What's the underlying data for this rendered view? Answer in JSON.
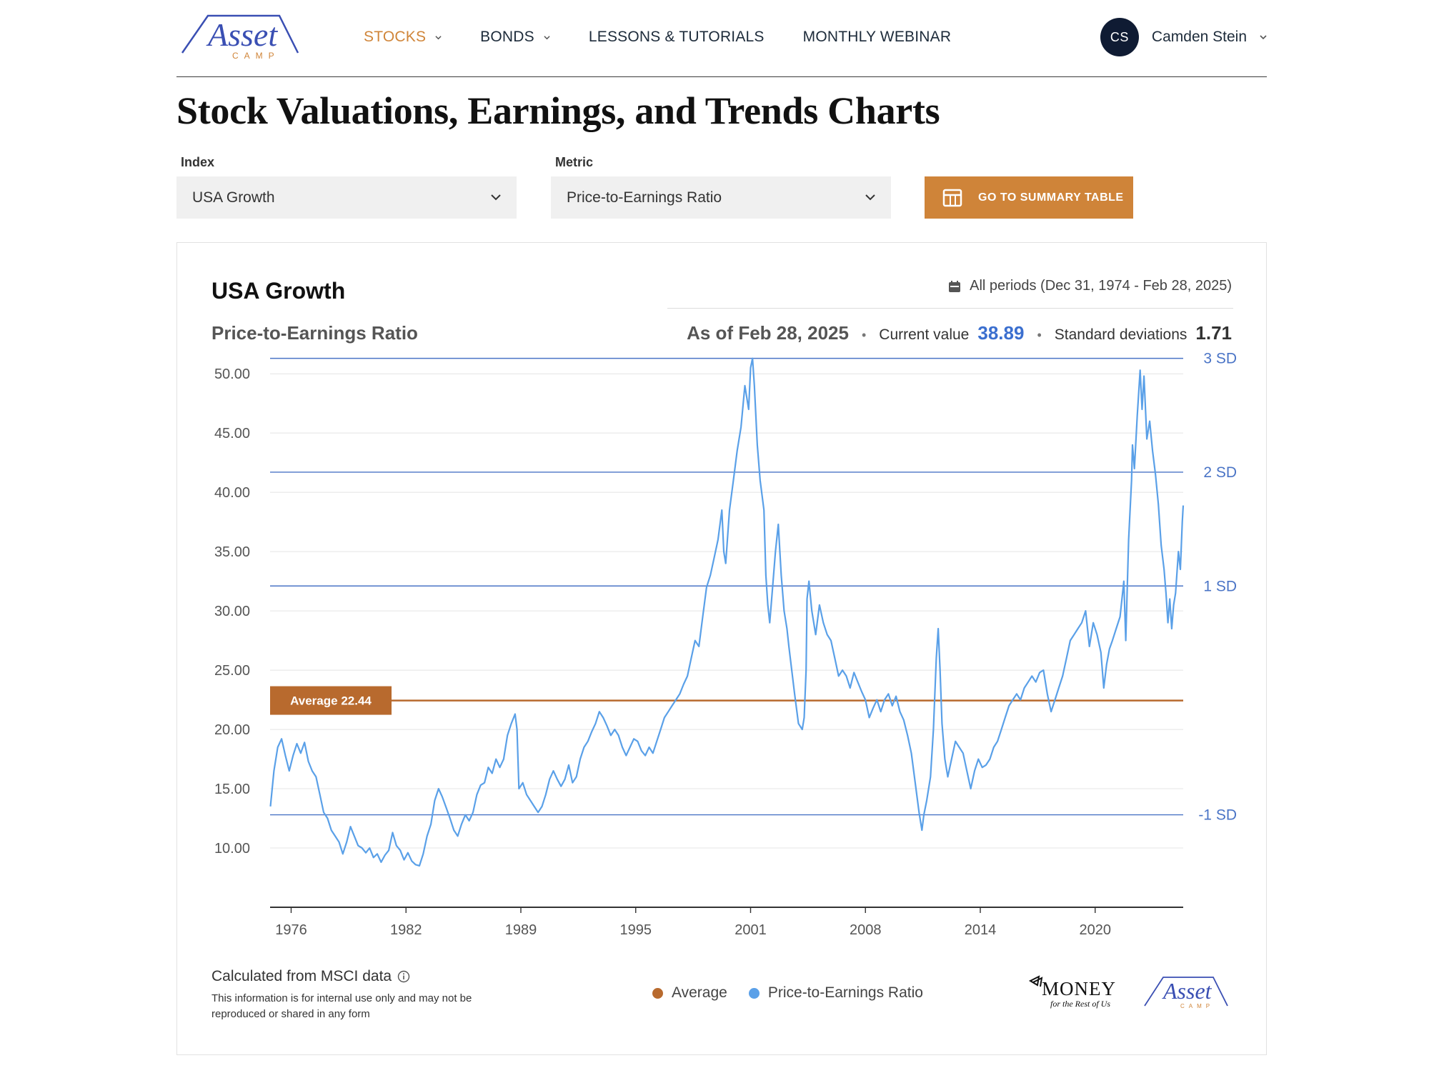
{
  "brand": {
    "logo_word": "Asset",
    "logo_sub": "CAMP"
  },
  "nav": {
    "items": [
      {
        "label": "STOCKS",
        "active": true,
        "dropdown": true
      },
      {
        "label": "BONDS",
        "active": false,
        "dropdown": true
      },
      {
        "label": "LESSONS & TUTORIALS",
        "active": false,
        "dropdown": false
      },
      {
        "label": "MONTHLY WEBINAR",
        "active": false,
        "dropdown": false
      }
    ]
  },
  "user": {
    "initials": "CS",
    "name": "Camden Stein"
  },
  "page": {
    "title": "Stock Valuations, Earnings, and Trends Charts"
  },
  "controls": {
    "index_label": "Index",
    "index_value": "USA Growth",
    "metric_label": "Metric",
    "metric_value": "Price-to-Earnings Ratio",
    "summary_button": "GO TO SUMMARY TABLE"
  },
  "card": {
    "title": "USA Growth",
    "subtitle": "Price-to-Earnings Ratio",
    "periods": "All periods (Dec 31, 1974 - Feb 28, 2025)",
    "as_of": "As of Feb 28, 2025",
    "current_label": "Current value",
    "current_value": "38.89",
    "sd_label": "Standard deviations",
    "sd_value": "1.71",
    "source": "Calculated from MSCI data",
    "note": "This information is for internal use only and may not be reproduced or shared in any form",
    "money_logo": "MONEY",
    "money_tagline": "for the Rest of Us"
  },
  "colors": {
    "accent": "#cf8439",
    "series": "#5aa0e8",
    "sd_line": "#4a74c6",
    "value_blue": "#3b6fcf",
    "average": "#b86a2e"
  },
  "chart_data": {
    "type": "line",
    "title": "USA Growth",
    "subtitle": "Price-to-Earnings Ratio",
    "ylim": [
      5,
      52
    ],
    "yticks": [
      "50.00",
      "45.00",
      "40.00",
      "35.00",
      "30.00",
      "25.00",
      "20.00",
      "15.00",
      "10.00"
    ],
    "ytick_values": [
      50,
      45,
      40,
      35,
      30,
      25,
      20,
      15,
      10
    ],
    "xticks": [
      "1976",
      "1982",
      "1989",
      "1995",
      "2001",
      "2008",
      "2014",
      "2020"
    ],
    "xtick_values": [
      1976,
      1982,
      1988,
      1994,
      2000,
      2006,
      2012,
      2018
    ],
    "xlim": [
      1974.9,
      2022.6
    ],
    "average": {
      "label": "Average 22.44",
      "value": 22.44
    },
    "sd_lines": [
      {
        "label": "3 SD",
        "value": 51.3
      },
      {
        "label": "2 SD",
        "value": 41.7
      },
      {
        "label": "1 SD",
        "value": 32.1
      },
      {
        "label": "-1 SD",
        "value": 12.8
      }
    ],
    "legend": [
      "Average",
      "Price-to-Earnings Ratio"
    ],
    "grid": true,
    "series": [
      {
        "name": "Price-to-Earnings Ratio",
        "points": [
          [
            1974.92,
            13.5
          ],
          [
            1975.1,
            16.5
          ],
          [
            1975.3,
            18.5
          ],
          [
            1975.5,
            19.2
          ],
          [
            1975.7,
            17.8
          ],
          [
            1975.9,
            16.5
          ],
          [
            1976.1,
            17.8
          ],
          [
            1976.3,
            18.8
          ],
          [
            1976.5,
            18.0
          ],
          [
            1976.7,
            18.9
          ],
          [
            1976.9,
            17.3
          ],
          [
            1977.1,
            16.5
          ],
          [
            1977.3,
            16.0
          ],
          [
            1977.5,
            14.5
          ],
          [
            1977.7,
            13.0
          ],
          [
            1977.9,
            12.5
          ],
          [
            1978.1,
            11.5
          ],
          [
            1978.3,
            11.0
          ],
          [
            1978.5,
            10.5
          ],
          [
            1978.7,
            9.5
          ],
          [
            1978.9,
            10.5
          ],
          [
            1979.1,
            11.8
          ],
          [
            1979.3,
            11.0
          ],
          [
            1979.5,
            10.2
          ],
          [
            1979.7,
            10.0
          ],
          [
            1979.9,
            9.6
          ],
          [
            1980.1,
            10.0
          ],
          [
            1980.3,
            9.2
          ],
          [
            1980.5,
            9.5
          ],
          [
            1980.7,
            8.8
          ],
          [
            1980.9,
            9.4
          ],
          [
            1981.1,
            9.8
          ],
          [
            1981.3,
            11.3
          ],
          [
            1981.5,
            10.2
          ],
          [
            1981.7,
            9.8
          ],
          [
            1981.9,
            9.0
          ],
          [
            1982.1,
            9.6
          ],
          [
            1982.3,
            8.9
          ],
          [
            1982.5,
            8.6
          ],
          [
            1982.7,
            8.5
          ],
          [
            1982.9,
            9.5
          ],
          [
            1983.1,
            11.0
          ],
          [
            1983.3,
            12.0
          ],
          [
            1983.5,
            14.0
          ],
          [
            1983.7,
            15.0
          ],
          [
            1983.9,
            14.3
          ],
          [
            1984.1,
            13.4
          ],
          [
            1984.3,
            12.5
          ],
          [
            1984.5,
            11.5
          ],
          [
            1984.7,
            11.0
          ],
          [
            1984.9,
            12.0
          ],
          [
            1985.1,
            12.8
          ],
          [
            1985.3,
            12.3
          ],
          [
            1985.5,
            13.0
          ],
          [
            1985.7,
            14.5
          ],
          [
            1985.9,
            15.3
          ],
          [
            1986.1,
            15.5
          ],
          [
            1986.3,
            16.8
          ],
          [
            1986.5,
            16.3
          ],
          [
            1986.7,
            17.5
          ],
          [
            1986.9,
            16.8
          ],
          [
            1987.1,
            17.5
          ],
          [
            1987.3,
            19.5
          ],
          [
            1987.5,
            20.5
          ],
          [
            1987.7,
            21.3
          ],
          [
            1987.8,
            20.0
          ],
          [
            1987.9,
            15.0
          ],
          [
            1988.1,
            15.5
          ],
          [
            1988.3,
            14.5
          ],
          [
            1988.5,
            14.0
          ],
          [
            1988.7,
            13.5
          ],
          [
            1988.9,
            13.0
          ],
          [
            1989.1,
            13.5
          ],
          [
            1989.3,
            14.5
          ],
          [
            1989.5,
            15.8
          ],
          [
            1989.7,
            16.5
          ],
          [
            1989.9,
            15.8
          ],
          [
            1990.1,
            15.2
          ],
          [
            1990.3,
            15.8
          ],
          [
            1990.5,
            17.0
          ],
          [
            1990.7,
            15.5
          ],
          [
            1990.9,
            16.0
          ],
          [
            1991.1,
            17.5
          ],
          [
            1991.3,
            18.5
          ],
          [
            1991.5,
            19.0
          ],
          [
            1991.7,
            19.8
          ],
          [
            1991.9,
            20.5
          ],
          [
            1992.1,
            21.5
          ],
          [
            1992.3,
            21.0
          ],
          [
            1992.5,
            20.3
          ],
          [
            1992.7,
            19.5
          ],
          [
            1992.9,
            20.0
          ],
          [
            1993.1,
            19.5
          ],
          [
            1993.3,
            18.5
          ],
          [
            1993.5,
            17.8
          ],
          [
            1993.7,
            18.5
          ],
          [
            1993.9,
            19.2
          ],
          [
            1994.1,
            19.0
          ],
          [
            1994.3,
            18.2
          ],
          [
            1994.5,
            17.8
          ],
          [
            1994.7,
            18.5
          ],
          [
            1994.9,
            18.0
          ],
          [
            1995.1,
            19.0
          ],
          [
            1995.3,
            20.0
          ],
          [
            1995.5,
            21.0
          ],
          [
            1995.7,
            21.5
          ],
          [
            1995.9,
            22.0
          ],
          [
            1996.1,
            22.5
          ],
          [
            1996.3,
            23.0
          ],
          [
            1996.5,
            23.8
          ],
          [
            1996.7,
            24.5
          ],
          [
            1996.9,
            26.0
          ],
          [
            1997.1,
            27.5
          ],
          [
            1997.3,
            27.0
          ],
          [
            1997.5,
            29.5
          ],
          [
            1997.7,
            32.0
          ],
          [
            1997.9,
            33.0
          ],
          [
            1998.1,
            34.5
          ],
          [
            1998.3,
            36.0
          ],
          [
            1998.5,
            38.5
          ],
          [
            1998.6,
            35.0
          ],
          [
            1998.7,
            34.0
          ],
          [
            1998.9,
            38.5
          ],
          [
            1999.1,
            41.0
          ],
          [
            1999.3,
            43.5
          ],
          [
            1999.5,
            45.5
          ],
          [
            1999.7,
            49.0
          ],
          [
            1999.9,
            47.0
          ],
          [
            2000.0,
            50.5
          ],
          [
            2000.1,
            51.3
          ],
          [
            2000.2,
            49.0
          ],
          [
            2000.35,
            44.0
          ],
          [
            2000.5,
            41.0
          ],
          [
            2000.7,
            38.5
          ],
          [
            2000.8,
            33.0
          ],
          [
            2000.9,
            30.5
          ],
          [
            2001.0,
            29.0
          ],
          [
            2001.1,
            31.0
          ],
          [
            2001.3,
            35.0
          ],
          [
            2001.45,
            37.3
          ],
          [
            2001.6,
            33.0
          ],
          [
            2001.75,
            30.0
          ],
          [
            2001.9,
            28.5
          ],
          [
            2002.0,
            27.0
          ],
          [
            2002.15,
            25.0
          ],
          [
            2002.3,
            23.0
          ],
          [
            2002.5,
            20.5
          ],
          [
            2002.7,
            20.0
          ],
          [
            2002.8,
            21.0
          ],
          [
            2002.9,
            25.0
          ],
          [
            2002.95,
            31.0
          ],
          [
            2003.05,
            32.5
          ],
          [
            2003.2,
            30.0
          ],
          [
            2003.4,
            28.0
          ],
          [
            2003.6,
            30.5
          ],
          [
            2003.8,
            29.0
          ],
          [
            2004.0,
            28.0
          ],
          [
            2004.2,
            27.5
          ],
          [
            2004.4,
            26.0
          ],
          [
            2004.6,
            24.5
          ],
          [
            2004.8,
            25.0
          ],
          [
            2005.0,
            24.5
          ],
          [
            2005.2,
            23.5
          ],
          [
            2005.4,
            24.8
          ],
          [
            2005.6,
            24.0
          ],
          [
            2005.8,
            23.2
          ],
          [
            2006.0,
            22.5
          ],
          [
            2006.2,
            21.0
          ],
          [
            2006.4,
            21.8
          ],
          [
            2006.6,
            22.5
          ],
          [
            2006.8,
            21.5
          ],
          [
            2007.0,
            22.5
          ],
          [
            2007.2,
            23.0
          ],
          [
            2007.4,
            22.0
          ],
          [
            2007.6,
            22.8
          ],
          [
            2007.8,
            21.5
          ],
          [
            2008.0,
            20.8
          ],
          [
            2008.2,
            19.5
          ],
          [
            2008.4,
            18.0
          ],
          [
            2008.6,
            15.5
          ],
          [
            2008.8,
            13.0
          ],
          [
            2008.95,
            11.5
          ],
          [
            2009.05,
            12.8
          ],
          [
            2009.2,
            14.0
          ],
          [
            2009.4,
            16.0
          ],
          [
            2009.55,
            20.0
          ],
          [
            2009.7,
            26.0
          ],
          [
            2009.8,
            28.5
          ],
          [
            2009.9,
            25.0
          ],
          [
            2010.0,
            20.5
          ],
          [
            2010.15,
            17.5
          ],
          [
            2010.3,
            16.0
          ],
          [
            2010.5,
            17.5
          ],
          [
            2010.7,
            19.0
          ],
          [
            2010.9,
            18.5
          ],
          [
            2011.1,
            18.0
          ],
          [
            2011.3,
            16.5
          ],
          [
            2011.5,
            15.0
          ],
          [
            2011.7,
            16.5
          ],
          [
            2011.9,
            17.5
          ],
          [
            2012.1,
            16.8
          ],
          [
            2012.3,
            17.0
          ],
          [
            2012.5,
            17.5
          ],
          [
            2012.7,
            18.5
          ],
          [
            2012.9,
            19.0
          ],
          [
            2013.1,
            20.0
          ],
          [
            2013.3,
            21.0
          ],
          [
            2013.5,
            22.0
          ],
          [
            2013.7,
            22.5
          ],
          [
            2013.9,
            23.0
          ],
          [
            2014.1,
            22.5
          ],
          [
            2014.3,
            23.5
          ],
          [
            2014.5,
            24.0
          ],
          [
            2014.7,
            24.5
          ],
          [
            2014.9,
            24.0
          ],
          [
            2015.1,
            24.8
          ],
          [
            2015.3,
            25.0
          ],
          [
            2015.5,
            23.0
          ],
          [
            2015.7,
            21.5
          ],
          [
            2015.9,
            22.5
          ],
          [
            2016.1,
            23.5
          ],
          [
            2016.3,
            24.5
          ],
          [
            2016.5,
            26.0
          ],
          [
            2016.7,
            27.5
          ],
          [
            2016.9,
            28.0
          ],
          [
            2017.1,
            28.5
          ],
          [
            2017.3,
            29.0
          ],
          [
            2017.5,
            30.0
          ],
          [
            2017.7,
            27.0
          ],
          [
            2017.9,
            29.0
          ],
          [
            2018.1,
            28.0
          ],
          [
            2018.3,
            26.5
          ],
          [
            2018.45,
            23.5
          ],
          [
            2018.6,
            25.5
          ],
          [
            2018.75,
            26.8
          ],
          [
            2018.9,
            27.5
          ],
          [
            2019.1,
            28.5
          ],
          [
            2019.3,
            29.5
          ],
          [
            2019.5,
            32.5
          ],
          [
            2019.6,
            27.5
          ],
          [
            2019.75,
            36.0
          ],
          [
            2019.9,
            41.0
          ],
          [
            2019.95,
            44.0
          ],
          [
            2020.05,
            42.0
          ],
          [
            2020.2,
            46.5
          ],
          [
            2020.35,
            50.3
          ],
          [
            2020.45,
            47.0
          ],
          [
            2020.55,
            49.8
          ],
          [
            2020.7,
            44.5
          ],
          [
            2020.85,
            46.0
          ],
          [
            2021.0,
            43.5
          ],
          [
            2021.15,
            41.5
          ],
          [
            2021.3,
            39.0
          ],
          [
            2021.45,
            35.5
          ],
          [
            2021.6,
            33.5
          ],
          [
            2021.7,
            31.5
          ],
          [
            2021.8,
            29.0
          ],
          [
            2021.9,
            31.0
          ],
          [
            2022.0,
            28.5
          ],
          [
            2022.1,
            30.5
          ],
          [
            2022.2,
            31.5
          ],
          [
            2022.35,
            35.0
          ],
          [
            2022.45,
            33.5
          ],
          [
            2022.55,
            37.5
          ],
          [
            2022.6,
            38.89
          ]
        ]
      }
    ]
  }
}
